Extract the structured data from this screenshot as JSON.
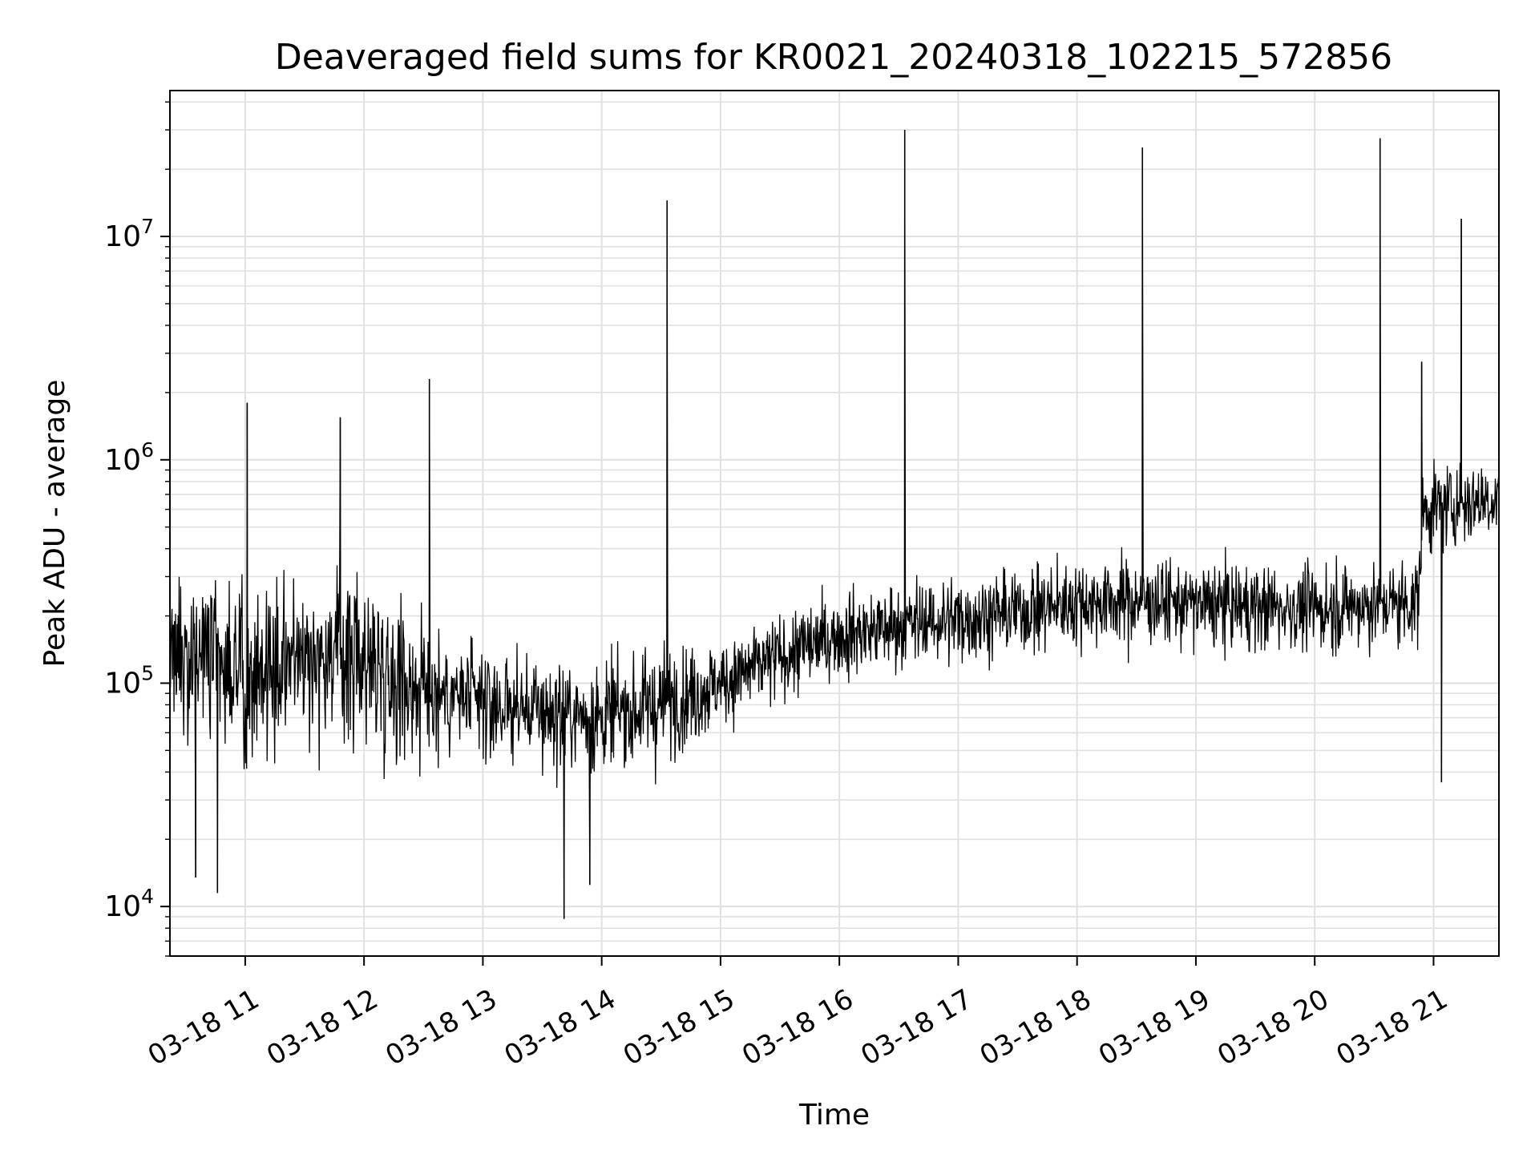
{
  "chart_data": {
    "type": "line",
    "title": "Deaveraged field sums for KR0021_20240318_102215_572856",
    "xlabel": "Time",
    "ylabel": "Peak ADU - average",
    "yscale": "log",
    "ylim": [
      6000,
      45000000
    ],
    "xlim": [
      "2024-03-18T10:22",
      "2024-03-18T21:33"
    ],
    "grid": true,
    "line_color": "#000000",
    "grid_color": "#e0e0e0",
    "xticks": [
      "2024-03-18T11:00",
      "2024-03-18T12:00",
      "2024-03-18T13:00",
      "2024-03-18T14:00",
      "2024-03-18T15:00",
      "2024-03-18T16:00",
      "2024-03-18T17:00",
      "2024-03-18T18:00",
      "2024-03-18T19:00",
      "2024-03-18T20:00",
      "2024-03-18T21:00"
    ],
    "xtick_labels": [
      "03-18 11",
      "03-18 12",
      "03-18 13",
      "03-18 14",
      "03-18 15",
      "03-18 16",
      "03-18 17",
      "03-18 18",
      "03-18 19",
      "03-18 20",
      "03-18 21"
    ],
    "yticks": [
      10000,
      100000,
      1000000,
      10000000
    ],
    "ytick_base": "10",
    "ytick_exponents": [
      "4",
      "5",
      "6",
      "7"
    ],
    "baseline_trend": [
      {
        "x": "2024-03-18T10:22",
        "y": 150000
      },
      {
        "x": "2024-03-18T11:00",
        "y": 110000
      },
      {
        "x": "2024-03-18T11:30",
        "y": 140000
      },
      {
        "x": "2024-03-18T12:00",
        "y": 130000
      },
      {
        "x": "2024-03-18T12:30",
        "y": 95000
      },
      {
        "x": "2024-03-18T13:00",
        "y": 80000
      },
      {
        "x": "2024-03-18T13:30",
        "y": 75000
      },
      {
        "x": "2024-03-18T14:00",
        "y": 70000
      },
      {
        "x": "2024-03-18T14:30",
        "y": 80000
      },
      {
        "x": "2024-03-18T15:00",
        "y": 100000
      },
      {
        "x": "2024-03-18T15:30",
        "y": 130000
      },
      {
        "x": "2024-03-18T16:00",
        "y": 165000
      },
      {
        "x": "2024-03-18T16:30",
        "y": 180000
      },
      {
        "x": "2024-03-18T17:00",
        "y": 195000
      },
      {
        "x": "2024-03-18T17:30",
        "y": 210000
      },
      {
        "x": "2024-03-18T18:00",
        "y": 230000
      },
      {
        "x": "2024-03-18T18:30",
        "y": 235000
      },
      {
        "x": "2024-03-18T19:00",
        "y": 225000
      },
      {
        "x": "2024-03-18T19:30",
        "y": 220000
      },
      {
        "x": "2024-03-18T20:00",
        "y": 215000
      },
      {
        "x": "2024-03-18T20:30",
        "y": 225000
      },
      {
        "x": "2024-03-18T20:52",
        "y": 230000
      },
      {
        "x": "2024-03-18T20:55",
        "y": 600000
      },
      {
        "x": "2024-03-18T21:33",
        "y": 680000
      }
    ],
    "spikes": [
      {
        "x": "2024-03-18T12:33",
        "y": 2300000
      },
      {
        "x": "2024-03-18T14:33",
        "y": 14500000
      },
      {
        "x": "2024-03-18T16:33",
        "y": 30000000
      },
      {
        "x": "2024-03-18T18:33",
        "y": 25000000
      },
      {
        "x": "2024-03-18T20:33",
        "y": 27500000
      },
      {
        "x": "2024-03-18T20:54",
        "y": 2750000
      },
      {
        "x": "2024-03-18T21:14",
        "y": 12000000
      },
      {
        "x": "2024-03-18T11:01",
        "y": 1800000
      },
      {
        "x": "2024-03-18T11:48",
        "y": 1550000
      }
    ],
    "dips": [
      {
        "x": "2024-03-18T13:41",
        "y": 8800
      },
      {
        "x": "2024-03-18T21:04",
        "y": 36000
      },
      {
        "x": "2024-03-18T10:46",
        "y": 11500
      },
      {
        "x": "2024-03-18T10:35",
        "y": 13500
      },
      {
        "x": "2024-03-18T13:54",
        "y": 12500
      }
    ]
  }
}
